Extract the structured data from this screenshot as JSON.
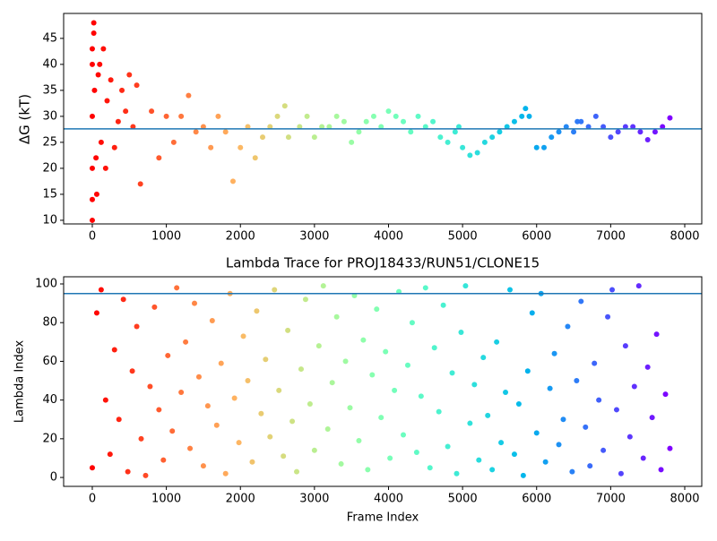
{
  "chart_data": [
    {
      "type": "scatter",
      "ylabel": "ΔG (kT)",
      "x": [
        0,
        0,
        0,
        0,
        0,
        0,
        20,
        20,
        30,
        50,
        60,
        80,
        100,
        120,
        150,
        180,
        200,
        250,
        300,
        350,
        400,
        450,
        500,
        550,
        600,
        650,
        800,
        900,
        1000,
        1100,
        1200,
        1300,
        1400,
        1500,
        1600,
        1700,
        1800,
        1900,
        2000,
        2100,
        2200,
        2300,
        2400,
        2500,
        2600,
        2650,
        2800,
        2900,
        3000,
        3100,
        3200,
        3300,
        3400,
        3500,
        3600,
        3700,
        3800,
        3900,
        4000,
        4100,
        4200,
        4300,
        4400,
        4500,
        4600,
        4700,
        4800,
        4900,
        4950,
        5000,
        5100,
        5200,
        5300,
        5400,
        5500,
        5600,
        5700,
        5800,
        5850,
        5900,
        6000,
        6100,
        6200,
        6300,
        6400,
        6500,
        6550,
        6600,
        6700,
        6800,
        6900,
        7000,
        7100,
        7200,
        7300,
        7400,
        7500,
        7600,
        7700,
        7800
      ],
      "values": [
        10,
        14,
        20,
        30,
        40,
        43,
        48,
        46,
        35,
        22,
        15,
        38,
        40,
        25,
        43,
        20,
        33,
        37,
        24,
        29,
        35,
        31,
        38,
        28,
        36,
        17,
        31,
        22,
        30,
        25,
        30,
        34,
        27,
        28,
        24,
        30,
        27,
        17.5,
        24,
        28,
        22,
        26,
        28,
        30,
        32,
        26,
        28,
        30,
        26,
        28,
        28,
        30,
        29,
        25,
        27,
        29,
        30,
        28,
        31,
        30,
        29,
        27,
        30,
        28,
        29,
        26,
        25,
        27,
        28,
        24,
        22.5,
        23,
        25,
        26,
        27,
        28,
        29,
        30,
        31.5,
        30,
        24,
        24,
        26,
        27,
        28,
        27,
        29,
        29,
        28,
        30,
        28,
        26,
        27,
        28,
        28,
        27,
        25.5,
        27,
        28,
        29.7
      ],
      "colormap": "rainbow",
      "colormap_reversed": true,
      "hline": {
        "value": 27.6,
        "color": "#1f77b4"
      },
      "xlim": [
        -387,
        8230
      ],
      "xticks": [
        0,
        1000,
        2000,
        3000,
        4000,
        5000,
        6000,
        7000,
        8000
      ],
      "ylim": [
        9.3,
        49.8
      ],
      "yticks": [
        10,
        15,
        20,
        25,
        30,
        35,
        40,
        45
      ]
    },
    {
      "type": "scatter",
      "title": "Lambda Trace for PROJ18433/RUN51/CLONE15",
      "xlabel": "Frame Index",
      "ylabel": "Lambda Index",
      "x": [
        0,
        60,
        120,
        180,
        240,
        300,
        360,
        420,
        480,
        540,
        600,
        660,
        720,
        780,
        840,
        900,
        960,
        1020,
        1080,
        1140,
        1200,
        1260,
        1320,
        1380,
        1440,
        1500,
        1560,
        1620,
        1680,
        1740,
        1800,
        1860,
        1920,
        1980,
        2040,
        2100,
        2160,
        2220,
        2280,
        2340,
        2400,
        2460,
        2520,
        2580,
        2640,
        2700,
        2760,
        2820,
        2880,
        2940,
        3000,
        3060,
        3120,
        3180,
        3240,
        3300,
        3360,
        3420,
        3480,
        3540,
        3600,
        3660,
        3720,
        3780,
        3840,
        3900,
        3960,
        4020,
        4080,
        4140,
        4200,
        4260,
        4320,
        4380,
        4440,
        4500,
        4560,
        4620,
        4680,
        4740,
        4800,
        4860,
        4920,
        4980,
        5040,
        5100,
        5160,
        5220,
        5280,
        5340,
        5400,
        5460,
        5520,
        5580,
        5640,
        5700,
        5760,
        5820,
        5880,
        5940,
        6000,
        6060,
        6120,
        6180,
        6240,
        6300,
        6360,
        6420,
        6480,
        6540,
        6600,
        6660,
        6720,
        6780,
        6840,
        6900,
        6960,
        7020,
        7080,
        7140,
        7200,
        7260,
        7320,
        7380,
        7440,
        7500,
        7560,
        7620,
        7680,
        7740,
        7800
      ],
      "values": [
        5,
        85,
        97,
        40,
        12,
        66,
        30,
        92,
        3,
        55,
        78,
        20,
        1,
        47,
        88,
        35,
        9,
        63,
        24,
        98,
        44,
        70,
        15,
        90,
        52,
        6,
        37,
        81,
        27,
        59,
        2,
        95,
        41,
        18,
        73,
        50,
        8,
        86,
        33,
        61,
        21,
        97,
        45,
        11,
        76,
        29,
        3,
        56,
        92,
        38,
        14,
        68,
        99,
        25,
        49,
        83,
        7,
        60,
        36,
        94,
        19,
        71,
        4,
        53,
        87,
        31,
        65,
        10,
        45,
        96,
        22,
        58,
        80,
        13,
        42,
        98,
        5,
        67,
        34,
        89,
        16,
        54,
        2,
        75,
        99,
        28,
        48,
        9,
        62,
        32,
        4,
        70,
        18,
        44,
        97,
        12,
        38,
        1,
        55,
        85,
        23,
        95,
        8,
        46,
        64,
        17,
        30,
        78,
        3,
        50,
        91,
        26,
        6,
        59,
        40,
        14,
        83,
        97,
        35,
        2,
        68,
        21,
        47,
        99,
        10,
        57,
        31,
        74,
        4,
        43,
        15
      ],
      "colormap": "rainbow",
      "colormap_reversed": true,
      "hline": {
        "value": 95,
        "color": "#1f77b4"
      },
      "xlim": [
        -387,
        8230
      ],
      "xticks": [
        0,
        1000,
        2000,
        3000,
        4000,
        5000,
        6000,
        7000,
        8000
      ],
      "ylim": [
        -4.6,
        103.7
      ],
      "yticks": [
        0,
        20,
        40,
        60,
        80,
        100
      ]
    }
  ]
}
